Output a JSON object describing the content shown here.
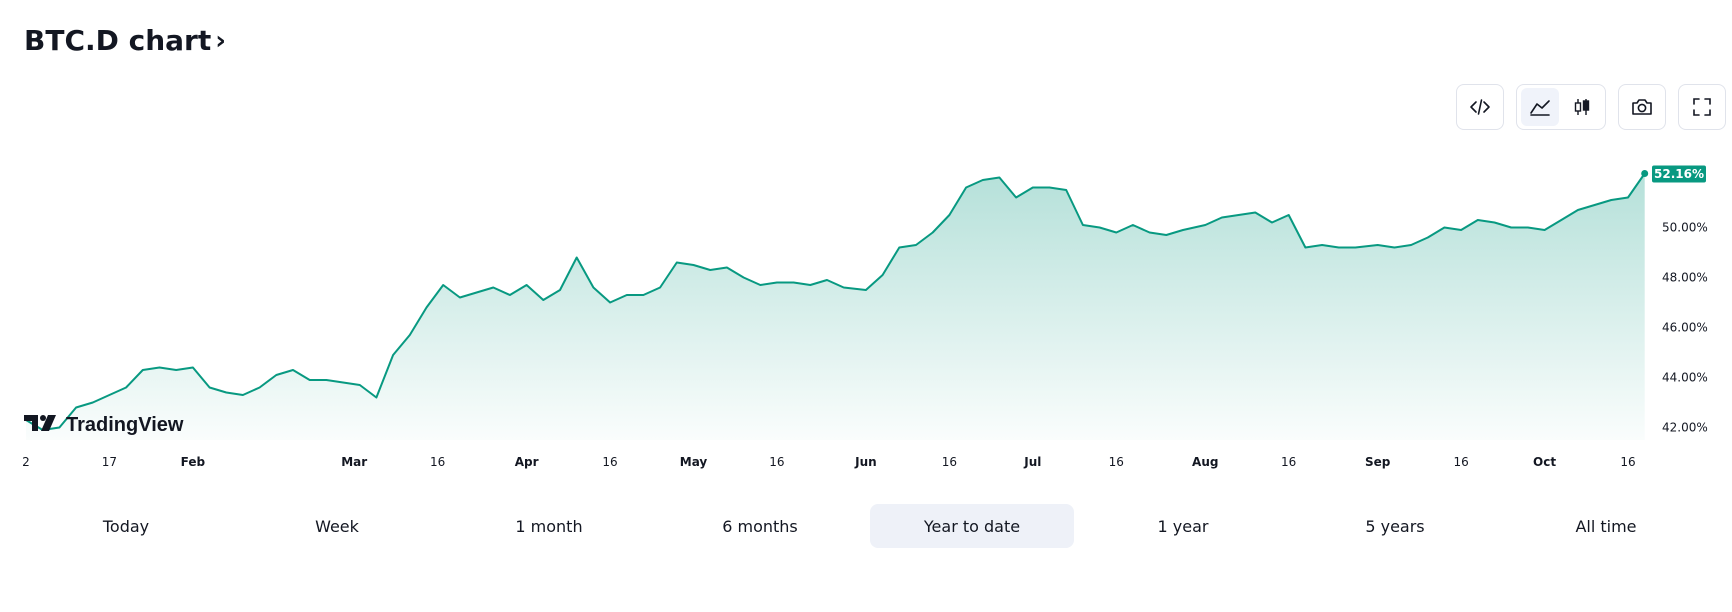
{
  "header": {
    "title": "BTC.D chart",
    "chevron": "›"
  },
  "toolbar": {
    "buttons": [
      {
        "name": "embed-button",
        "icon": "code-icon"
      },
      {
        "name": "area-chart-button",
        "icon": "area-chart-icon",
        "active": true
      },
      {
        "name": "candlestick-button",
        "icon": "candlestick-icon"
      },
      {
        "name": "snapshot-button",
        "icon": "camera-icon"
      },
      {
        "name": "fullscreen-button",
        "icon": "fullscreen-icon"
      }
    ]
  },
  "logo": {
    "text": "TradingView"
  },
  "chart_data": {
    "type": "area",
    "title": "",
    "color": "#089981",
    "last_value_label": "52.16%",
    "ylim": [
      41.5,
      53.1
    ],
    "y_ticks": [
      "42.00%",
      "44.00%",
      "46.00%",
      "48.00%",
      "50.00%"
    ],
    "y_tick_values": [
      42,
      44,
      46,
      48,
      50
    ],
    "x_ticks": [
      "2",
      "17",
      "Feb",
      "Mar",
      "16",
      "Apr",
      "16",
      "May",
      "16",
      "Jun",
      "16",
      "Jul",
      "16",
      "Aug",
      "16",
      "Sep",
      "16",
      "Oct",
      "16"
    ],
    "x_tick_dates": [
      "2024-01-02",
      "2024-01-17",
      "2024-02-01",
      "2024-03-01",
      "2024-03-16",
      "2024-04-01",
      "2024-04-16",
      "2024-05-01",
      "2024-05-16",
      "2024-06-01",
      "2024-06-16",
      "2024-07-01",
      "2024-07-16",
      "2024-08-01",
      "2024-08-16",
      "2024-09-01",
      "2024-09-16",
      "2024-10-01",
      "2024-10-16"
    ],
    "x": [
      "2024-01-02",
      "2024-01-05",
      "2024-01-08",
      "2024-01-11",
      "2024-01-14",
      "2024-01-17",
      "2024-01-20",
      "2024-01-23",
      "2024-01-26",
      "2024-01-29",
      "2024-02-01",
      "2024-02-04",
      "2024-02-07",
      "2024-02-10",
      "2024-02-13",
      "2024-02-16",
      "2024-02-19",
      "2024-02-22",
      "2024-02-25",
      "2024-02-28",
      "2024-03-02",
      "2024-03-05",
      "2024-03-08",
      "2024-03-11",
      "2024-03-14",
      "2024-03-17",
      "2024-03-20",
      "2024-03-23",
      "2024-03-26",
      "2024-03-29",
      "2024-04-01",
      "2024-04-04",
      "2024-04-07",
      "2024-04-10",
      "2024-04-13",
      "2024-04-16",
      "2024-04-19",
      "2024-04-22",
      "2024-04-25",
      "2024-04-28",
      "2024-05-01",
      "2024-05-04",
      "2024-05-07",
      "2024-05-10",
      "2024-05-13",
      "2024-05-16",
      "2024-05-19",
      "2024-05-22",
      "2024-05-25",
      "2024-05-28",
      "2024-06-01",
      "2024-06-04",
      "2024-06-07",
      "2024-06-10",
      "2024-06-13",
      "2024-06-16",
      "2024-06-19",
      "2024-06-22",
      "2024-06-25",
      "2024-06-28",
      "2024-07-01",
      "2024-07-04",
      "2024-07-07",
      "2024-07-10",
      "2024-07-13",
      "2024-07-16",
      "2024-07-19",
      "2024-07-22",
      "2024-07-25",
      "2024-07-28",
      "2024-08-01",
      "2024-08-04",
      "2024-08-07",
      "2024-08-10",
      "2024-08-13",
      "2024-08-16",
      "2024-08-19",
      "2024-08-22",
      "2024-08-25",
      "2024-08-28",
      "2024-09-01",
      "2024-09-04",
      "2024-09-07",
      "2024-09-10",
      "2024-09-13",
      "2024-09-16",
      "2024-09-19",
      "2024-09-22",
      "2024-09-25",
      "2024-09-28",
      "2024-10-01",
      "2024-10-04",
      "2024-10-07",
      "2024-10-10",
      "2024-10-13",
      "2024-10-16",
      "2024-10-19"
    ],
    "values": [
      42.3,
      41.9,
      42.0,
      42.8,
      43.0,
      43.3,
      43.6,
      44.3,
      44.4,
      44.3,
      44.4,
      43.6,
      43.4,
      43.3,
      43.6,
      44.1,
      44.3,
      43.9,
      43.9,
      43.8,
      43.7,
      43.2,
      44.9,
      45.7,
      46.8,
      47.7,
      47.2,
      47.4,
      47.6,
      47.3,
      47.7,
      47.1,
      47.5,
      48.8,
      47.6,
      47.0,
      47.3,
      47.3,
      47.6,
      48.6,
      48.5,
      48.3,
      48.4,
      48.0,
      47.7,
      47.8,
      47.8,
      47.7,
      47.9,
      47.6,
      47.5,
      48.1,
      49.2,
      49.3,
      49.8,
      50.5,
      51.6,
      51.9,
      52.0,
      51.2,
      51.6,
      51.6,
      51.5,
      50.1,
      50.0,
      49.8,
      50.1,
      49.8,
      49.7,
      49.9,
      50.1,
      50.4,
      50.5,
      50.6,
      50.2,
      50.5,
      49.2,
      49.3,
      49.2,
      49.2,
      49.3,
      49.2,
      49.3,
      49.6,
      50.0,
      49.9,
      50.3,
      50.2,
      50.0,
      50.0,
      49.9,
      50.3,
      50.7,
      50.9,
      51.1,
      51.2,
      52.16
    ],
    "grid": false,
    "y_axis_position": "right"
  },
  "ranges": [
    {
      "label": "Today",
      "active": false
    },
    {
      "label": "Week",
      "active": false
    },
    {
      "label": "1 month",
      "active": false
    },
    {
      "label": "6 months",
      "active": false
    },
    {
      "label": "Year to date",
      "active": true
    },
    {
      "label": "1 year",
      "active": false
    },
    {
      "label": "5 years",
      "active": false
    },
    {
      "label": "All time",
      "active": false
    }
  ]
}
